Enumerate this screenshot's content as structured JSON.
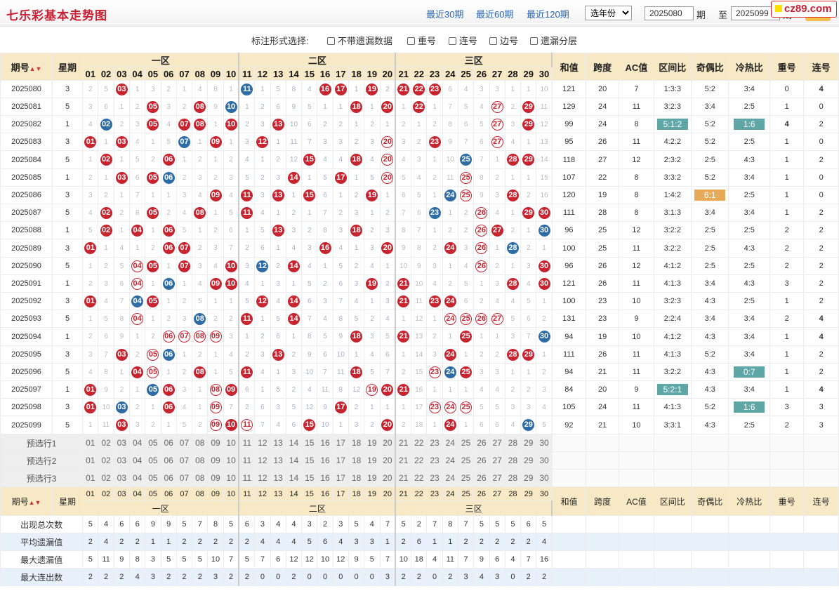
{
  "header": {
    "title": "七乐彩基本走势图",
    "links": [
      "最近30期",
      "最近60期",
      "最近120期"
    ],
    "year_select": "选年份",
    "period_from": "2025080",
    "period_label": "期",
    "to_label": "至",
    "period_to": "2025099",
    "watermark": "cz89.com"
  },
  "options": {
    "label": "标注形式选择:",
    "items": [
      "不带遗漏数据",
      "重号",
      "连号",
      "边号",
      "遗漏分层"
    ]
  },
  "table": {
    "hdr_period": "期号",
    "hdr_week": "星期",
    "zones": [
      "一区",
      "二区",
      "三区"
    ],
    "nums": [
      "01",
      "02",
      "03",
      "04",
      "05",
      "06",
      "07",
      "08",
      "09",
      "10",
      "11",
      "12",
      "13",
      "14",
      "15",
      "16",
      "17",
      "18",
      "19",
      "20",
      "21",
      "22",
      "23",
      "24",
      "25",
      "26",
      "27",
      "28",
      "29",
      "30"
    ],
    "stat_headers": [
      "和值",
      "跨度",
      "AC值",
      "区间比",
      "奇偶比",
      "冷热比",
      "重号",
      "连号"
    ],
    "rows": [
      {
        "p": "2025080",
        "w": "3",
        "c": [
          "2",
          "5",
          "R03",
          "1",
          "3",
          "2",
          "1",
          "4",
          "8",
          "1",
          "B11",
          "1",
          "5",
          "8",
          "4",
          "R16",
          "R17",
          "1",
          "R19",
          "2",
          "R21",
          "R22",
          "R23",
          "6",
          "4",
          "3",
          "3",
          "1",
          "1",
          "10"
        ],
        "s": [
          "121",
          "20",
          "7",
          "1:3:3",
          "5:2",
          "3:4",
          "0",
          "4"
        ],
        "hl": {},
        "flags": {
          "7": "blu"
        }
      },
      {
        "p": "2025081",
        "w": "5",
        "c": [
          "3",
          "6",
          "1",
          "2",
          "R05",
          "3",
          "2",
          "R08",
          "9",
          "B10",
          "1",
          "2",
          "6",
          "9",
          "5",
          "1",
          "1",
          "R18",
          "1",
          "R20",
          "1",
          "R22",
          "1",
          "7",
          "5",
          "4",
          "O27",
          "2",
          "R29",
          "11"
        ],
        "s": [
          "129",
          "24",
          "11",
          "3:2:3",
          "3:4",
          "2:5",
          "1",
          "0"
        ],
        "hl": {},
        "flags": {}
      },
      {
        "p": "2025082",
        "w": "1",
        "c": [
          "4",
          "B02",
          "2",
          "3",
          "R05",
          "4",
          "R07",
          "R08",
          "1",
          "R10",
          "2",
          "3",
          "R13",
          "10",
          "6",
          "2",
          "2",
          "1",
          "2",
          "1",
          "2",
          "1",
          "2",
          "8",
          "6",
          "5",
          "O27",
          "3",
          "R29",
          "12"
        ],
        "s": [
          "99",
          "24",
          "8",
          "5:1:2",
          "5:2",
          "1:6",
          "4",
          "2"
        ],
        "hl": {
          "3": "teal",
          "5": "teal"
        },
        "flags": {
          "6": "rep"
        }
      },
      {
        "p": "2025083",
        "w": "3",
        "c": [
          "R01",
          "1",
          "R03",
          "4",
          "1",
          "5",
          "B07",
          "1",
          "R09",
          "1",
          "3",
          "R12",
          "1",
          "11",
          "7",
          "3",
          "3",
          "2",
          "3",
          "O20",
          "3",
          "2",
          "R23",
          "9",
          "7",
          "6",
          "O27",
          "4",
          "1",
          "13"
        ],
        "s": [
          "95",
          "26",
          "11",
          "4:2:2",
          "5:2",
          "2:5",
          "1",
          "0"
        ],
        "hl": {},
        "flags": {}
      },
      {
        "p": "2025084",
        "w": "5",
        "c": [
          "1",
          "R02",
          "1",
          "5",
          "2",
          "R06",
          "1",
          "2",
          "1",
          "2",
          "4",
          "1",
          "2",
          "12",
          "R15",
          "4",
          "4",
          "R18",
          "4",
          "O20",
          "4",
          "3",
          "1",
          "10",
          "B25",
          "7",
          "1",
          "R28",
          "R29",
          "14"
        ],
        "s": [
          "118",
          "27",
          "12",
          "2:3:2",
          "2:5",
          "4:3",
          "1",
          "2"
        ],
        "hl": {},
        "flags": {}
      },
      {
        "p": "2025085",
        "w": "1",
        "c": [
          "2",
          "1",
          "R03",
          "6",
          "R05",
          "B06",
          "2",
          "3",
          "2",
          "3",
          "5",
          "2",
          "3",
          "R14",
          "1",
          "5",
          "R17",
          "1",
          "5",
          "O20",
          "5",
          "4",
          "2",
          "11",
          "O25",
          "8",
          "2",
          "1",
          "1",
          "15"
        ],
        "s": [
          "107",
          "22",
          "8",
          "3:3:2",
          "5:2",
          "3:4",
          "1",
          "0"
        ],
        "hl": {},
        "flags": {}
      },
      {
        "p": "2025086",
        "w": "3",
        "c": [
          "3",
          "2",
          "1",
          "7",
          "1",
          "1",
          "3",
          "4",
          "R09",
          "4",
          "R11",
          "3",
          "R13",
          "1",
          "R15",
          "6",
          "1",
          "2",
          "R19",
          "1",
          "6",
          "5",
          "1",
          "B24",
          "O25",
          "9",
          "3",
          "R28",
          "2",
          "16"
        ],
        "s": [
          "120",
          "19",
          "8",
          "1:4:2",
          "6:1",
          "2:5",
          "1",
          "0"
        ],
        "hl": {
          "4": "gold"
        },
        "flags": {}
      },
      {
        "p": "2025087",
        "w": "5",
        "c": [
          "4",
          "R02",
          "2",
          "8",
          "R05",
          "2",
          "4",
          "R08",
          "1",
          "5",
          "R11",
          "4",
          "1",
          "2",
          "1",
          "7",
          "2",
          "3",
          "1",
          "2",
          "7",
          "6",
          "B23",
          "1",
          "2",
          "O26",
          "4",
          "1",
          "R29",
          "R30"
        ],
        "s": [
          "111",
          "28",
          "8",
          "3:1:3",
          "3:4",
          "3:4",
          "1",
          "2"
        ],
        "hl": {},
        "flags": {}
      },
      {
        "p": "2025088",
        "w": "1",
        "c": [
          "5",
          "R02",
          "1",
          "R04",
          "1",
          "R06",
          "5",
          "1",
          "2",
          "6",
          "1",
          "5",
          "R13",
          "3",
          "2",
          "8",
          "3",
          "R18",
          "2",
          "3",
          "8",
          "7",
          "1",
          "2",
          "2",
          "O26",
          "R27",
          "2",
          "1",
          "B30"
        ],
        "s": [
          "96",
          "25",
          "12",
          "3:2:2",
          "2:5",
          "2:5",
          "2",
          "2"
        ],
        "hl": {},
        "flags": {}
      },
      {
        "p": "2025089",
        "w": "3",
        "c": [
          "R01",
          "1",
          "4",
          "1",
          "2",
          "R06",
          "R07",
          "2",
          "3",
          "7",
          "2",
          "6",
          "1",
          "4",
          "3",
          "R16",
          "4",
          "1",
          "3",
          "R20",
          "9",
          "8",
          "2",
          "R24",
          "3",
          "O26",
          "1",
          "B28",
          "2",
          "1"
        ],
        "s": [
          "100",
          "25",
          "11",
          "3:2:2",
          "2:5",
          "4:3",
          "2",
          "2"
        ],
        "hl": {},
        "flags": {}
      },
      {
        "p": "2025090",
        "w": "5",
        "c": [
          "1",
          "2",
          "5",
          "O04",
          "R05",
          "1",
          "R07",
          "3",
          "4",
          "R10",
          "3",
          "B12",
          "2",
          "R14",
          "4",
          "1",
          "5",
          "2",
          "4",
          "1",
          "10",
          "9",
          "3",
          "1",
          "4",
          "O26",
          "2",
          "1",
          "3",
          "R30"
        ],
        "s": [
          "96",
          "26",
          "12",
          "4:1:2",
          "2:5",
          "2:5",
          "2",
          "2"
        ],
        "hl": {},
        "flags": {}
      },
      {
        "p": "2025091",
        "w": "1",
        "c": [
          "2",
          "3",
          "6",
          "O04",
          "1",
          "B06",
          "1",
          "4",
          "R09",
          "R10",
          "4",
          "1",
          "3",
          "1",
          "5",
          "2",
          "6",
          "3",
          "R19",
          "2",
          "R21",
          "10",
          "4",
          "2",
          "5",
          "1",
          "3",
          "R28",
          "4",
          "R30"
        ],
        "s": [
          "121",
          "26",
          "11",
          "4:1:3",
          "3:4",
          "4:3",
          "3",
          "2"
        ],
        "hl": {},
        "flags": {}
      },
      {
        "p": "2025092",
        "w": "3",
        "c": [
          "R01",
          "4",
          "7",
          "B04",
          "R05",
          "1",
          "2",
          "5",
          "1",
          "1",
          "5",
          "R12",
          "4",
          "R14",
          "6",
          "3",
          "7",
          "4",
          "1",
          "3",
          "R21",
          "11",
          "R23",
          "R24",
          "6",
          "2",
          "4",
          "4",
          "5",
          "1"
        ],
        "s": [
          "100",
          "23",
          "10",
          "3:2:3",
          "4:3",
          "2:5",
          "1",
          "2"
        ],
        "hl": {},
        "flags": {}
      },
      {
        "p": "2025093",
        "w": "5",
        "c": [
          "1",
          "5",
          "8",
          "O04",
          "1",
          "2",
          "3",
          "B08",
          "2",
          "2",
          "R11",
          "1",
          "5",
          "R14",
          "7",
          "4",
          "8",
          "5",
          "2",
          "4",
          "1",
          "12",
          "1",
          "O24",
          "O25",
          "O26",
          "O27",
          "5",
          "6",
          "2"
        ],
        "s": [
          "131",
          "23",
          "9",
          "2:2:4",
          "3:4",
          "3:4",
          "2",
          "4"
        ],
        "hl": {},
        "flags": {
          "7": "blu"
        }
      },
      {
        "p": "2025094",
        "w": "1",
        "c": [
          "2",
          "6",
          "9",
          "1",
          "2",
          "O06",
          "O07",
          "O08",
          "O09",
          "3",
          "1",
          "2",
          "6",
          "1",
          "8",
          "5",
          "9",
          "R18",
          "3",
          "5",
          "R21",
          "13",
          "2",
          "1",
          "R25",
          "1",
          "1",
          "3",
          "7",
          "B30"
        ],
        "s": [
          "94",
          "19",
          "10",
          "4:1:2",
          "4:3",
          "3:4",
          "1",
          "4"
        ],
        "hl": {},
        "flags": {
          "7": "blu"
        }
      },
      {
        "p": "2025095",
        "w": "3",
        "c": [
          "3",
          "7",
          "R03",
          "2",
          "O05",
          "B06",
          "1",
          "2",
          "1",
          "4",
          "2",
          "3",
          "R13",
          "2",
          "9",
          "6",
          "10",
          "1",
          "4",
          "6",
          "1",
          "14",
          "3",
          "R24",
          "1",
          "2",
          "2",
          "R28",
          "R29",
          "1"
        ],
        "s": [
          "111",
          "26",
          "11",
          "4:1:3",
          "5:2",
          "3:4",
          "1",
          "2"
        ],
        "hl": {},
        "flags": {}
      },
      {
        "p": "2025096",
        "w": "5",
        "c": [
          "4",
          "8",
          "1",
          "R04",
          "O05",
          "1",
          "2",
          "R08",
          "1",
          "5",
          "R11",
          "4",
          "1",
          "3",
          "10",
          "7",
          "11",
          "R18",
          "5",
          "7",
          "2",
          "15",
          "O23",
          "B24",
          "R25",
          "3",
          "3",
          "1",
          "1",
          "2"
        ],
        "s": [
          "94",
          "21",
          "11",
          "3:2:2",
          "4:3",
          "0:7",
          "1",
          "2"
        ],
        "hl": {
          "5": "teal"
        },
        "flags": {}
      },
      {
        "p": "2025097",
        "w": "1",
        "c": [
          "R01",
          "9",
          "2",
          "1",
          "B05",
          "R06",
          "3",
          "1",
          "O08",
          "R09",
          "6",
          "1",
          "5",
          "2",
          "4",
          "11",
          "8",
          "12",
          "O19",
          "R20",
          "R21",
          "16",
          "1",
          "1",
          "1",
          "4",
          "4",
          "2",
          "2",
          "3"
        ],
        "s": [
          "84",
          "20",
          "9",
          "5:2:1",
          "4:3",
          "3:4",
          "1",
          "4"
        ],
        "hl": {
          "3": "teal"
        },
        "flags": {
          "7": "blu"
        }
      },
      {
        "p": "2025098",
        "w": "3",
        "c": [
          "R01",
          "10",
          "B03",
          "2",
          "1",
          "R06",
          "4",
          "1",
          "O09",
          "7",
          "2",
          "6",
          "3",
          "5",
          "12",
          "9",
          "R17",
          "2",
          "1",
          "1",
          "1",
          "17",
          "O23",
          "O24",
          "O25",
          "5",
          "5",
          "3",
          "3",
          "4"
        ],
        "s": [
          "105",
          "24",
          "11",
          "4:1:3",
          "5:2",
          "1:6",
          "3",
          "3"
        ],
        "hl": {
          "5": "teal"
        },
        "flags": {}
      },
      {
        "p": "2025099",
        "w": "5",
        "c": [
          "1",
          "11",
          "R03",
          "3",
          "2",
          "1",
          "5",
          "2",
          "O09",
          "R10",
          "O11",
          "7",
          "4",
          "6",
          "R15",
          "10",
          "1",
          "3",
          "2",
          "R20",
          "2",
          "18",
          "1",
          "R24",
          "1",
          "6",
          "6",
          "4",
          "B29",
          "5"
        ],
        "s": [
          "92",
          "21",
          "10",
          "3:3:1",
          "4:3",
          "2:5",
          "2",
          "3"
        ],
        "hl": {},
        "flags": {}
      }
    ],
    "picks": [
      "预选行1",
      "预选行2",
      "预选行3"
    ],
    "stats": [
      {
        "label": "出现总次数",
        "v": [
          "5",
          "4",
          "6",
          "6",
          "9",
          "9",
          "5",
          "7",
          "8",
          "5",
          "6",
          "3",
          "4",
          "4",
          "3",
          "2",
          "3",
          "5",
          "4",
          "7",
          "5",
          "2",
          "7",
          "8",
          "7",
          "5",
          "5",
          "5",
          "6",
          "5"
        ]
      },
      {
        "label": "平均遗漏值",
        "v": [
          "2",
          "4",
          "2",
          "2",
          "1",
          "1",
          "2",
          "2",
          "2",
          "2",
          "2",
          "4",
          "4",
          "4",
          "5",
          "6",
          "4",
          "3",
          "3",
          "1",
          "2",
          "6",
          "1",
          "1",
          "2",
          "2",
          "2",
          "2",
          "2",
          "4"
        ]
      },
      {
        "label": "最大遗漏值",
        "v": [
          "5",
          "11",
          "9",
          "8",
          "3",
          "5",
          "5",
          "5",
          "10",
          "7",
          "5",
          "7",
          "6",
          "12",
          "12",
          "10",
          "12",
          "9",
          "5",
          "7",
          "10",
          "18",
          "4",
          "11",
          "7",
          "9",
          "6",
          "4",
          "7",
          "16"
        ]
      },
      {
        "label": "最大连出数",
        "v": [
          "2",
          "2",
          "2",
          "4",
          "3",
          "2",
          "2",
          "2",
          "3",
          "2",
          "2",
          "0",
          "0",
          "2",
          "0",
          "0",
          "0",
          "0",
          "0",
          "3",
          "2",
          "2",
          "0",
          "2",
          "3",
          "4",
          "3",
          "0",
          "2",
          "2"
        ]
      }
    ]
  }
}
